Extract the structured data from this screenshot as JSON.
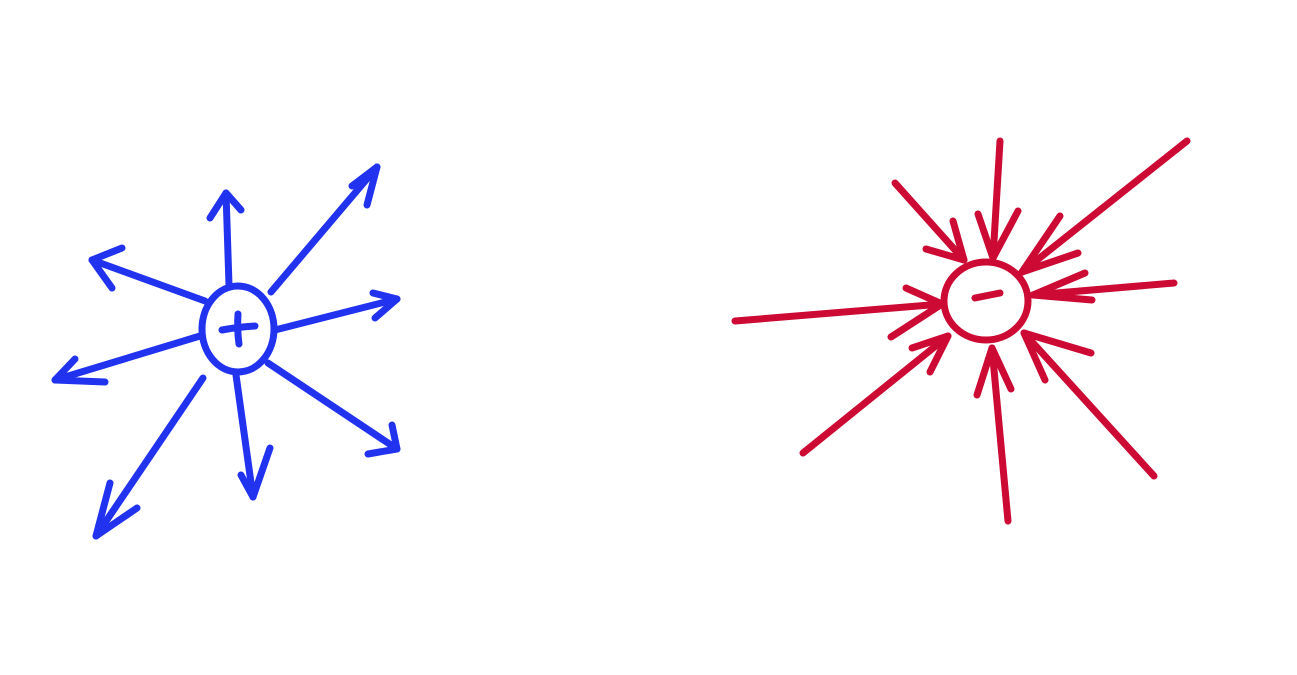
{
  "colors": {
    "background": "#ffffff",
    "positive": "#2233f0",
    "negative": "#cc0a33"
  },
  "charges": [
    {
      "id": "positive",
      "sign": "+",
      "color": "#2233f0",
      "field_direction": "outward",
      "field_line_count": 8
    },
    {
      "id": "negative",
      "sign": "-",
      "color": "#cc0a33",
      "field_direction": "inward",
      "field_line_count": 9
    }
  ]
}
